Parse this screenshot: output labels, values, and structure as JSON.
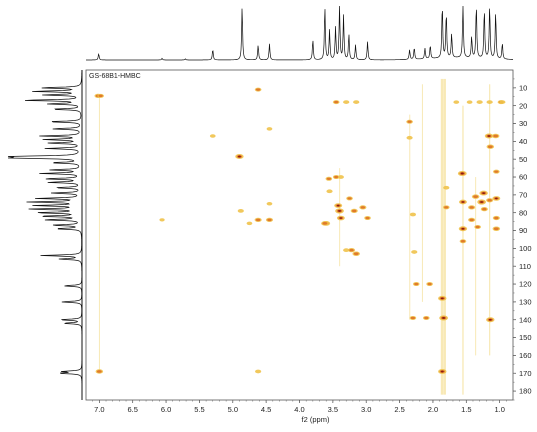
{
  "chart_data": {
    "type": "heatmap",
    "title": "GS-68B1-HMBC",
    "xlabel": "f2 (ppm)",
    "ylabel": "",
    "xlim": [
      7.2,
      0.8
    ],
    "ylim": [
      0,
      185
    ],
    "x_ticks": [
      "7.0",
      "6.5",
      "6.0",
      "5.5",
      "5.0",
      "4.5",
      "4.0",
      "3.5",
      "3.0",
      "2.5",
      "2.0",
      "1.5",
      "1.0"
    ],
    "y_ticks": [
      "10",
      "20",
      "30",
      "40",
      "50",
      "60",
      "70",
      "80",
      "90",
      "100",
      "110",
      "120",
      "130",
      "140",
      "150",
      "160",
      "170",
      "180"
    ],
    "grid": false,
    "proton_projection": [
      {
        "ppm": 7.01,
        "h": 0.12
      },
      {
        "ppm": 6.06,
        "h": 0.03
      },
      {
        "ppm": 5.71,
        "h": 0.02
      },
      {
        "ppm": 5.3,
        "h": 0.2
      },
      {
        "ppm": 4.86,
        "h": 1.0
      },
      {
        "ppm": 4.62,
        "h": 0.28
      },
      {
        "ppm": 4.45,
        "h": 0.3
      },
      {
        "ppm": 3.8,
        "h": 0.38
      },
      {
        "ppm": 3.62,
        "h": 1.0
      },
      {
        "ppm": 3.55,
        "h": 0.55
      },
      {
        "ppm": 3.46,
        "h": 0.6
      },
      {
        "ppm": 3.4,
        "h": 1.0
      },
      {
        "ppm": 3.34,
        "h": 0.82
      },
      {
        "ppm": 3.26,
        "h": 0.48
      },
      {
        "ppm": 3.16,
        "h": 0.28
      },
      {
        "ppm": 2.98,
        "h": 0.34
      },
      {
        "ppm": 2.35,
        "h": 0.18
      },
      {
        "ppm": 2.28,
        "h": 0.22
      },
      {
        "ppm": 2.12,
        "h": 0.2
      },
      {
        "ppm": 2.04,
        "h": 0.25
      },
      {
        "ppm": 1.86,
        "h": 1.0
      },
      {
        "ppm": 1.8,
        "h": 0.85
      },
      {
        "ppm": 1.72,
        "h": 0.45
      },
      {
        "ppm": 1.55,
        "h": 1.0
      },
      {
        "ppm": 1.42,
        "h": 0.4
      },
      {
        "ppm": 1.35,
        "h": 1.0
      },
      {
        "ppm": 1.23,
        "h": 0.92
      },
      {
        "ppm": 1.15,
        "h": 0.98
      },
      {
        "ppm": 1.06,
        "h": 0.88
      },
      {
        "ppm": 0.96,
        "h": 0.3
      }
    ],
    "carbon_projection": [
      {
        "ppm": 10,
        "h": 0.55
      },
      {
        "ppm": 12,
        "h": 0.65
      },
      {
        "ppm": 14,
        "h": 0.5
      },
      {
        "ppm": 17,
        "h": 0.8
      },
      {
        "ppm": 19,
        "h": 0.45
      },
      {
        "ppm": 22,
        "h": 0.4
      },
      {
        "ppm": 29,
        "h": 0.45
      },
      {
        "ppm": 33,
        "h": 0.4
      },
      {
        "ppm": 37,
        "h": 0.55
      },
      {
        "ppm": 39,
        "h": 0.5
      },
      {
        "ppm": 41,
        "h": 0.45
      },
      {
        "ppm": 44,
        "h": 0.48
      },
      {
        "ppm": 48.5,
        "h": 1.0
      },
      {
        "ppm": 49.3,
        "h": 0.95
      },
      {
        "ppm": 52,
        "h": 0.4
      },
      {
        "ppm": 56,
        "h": 0.42
      },
      {
        "ppm": 58,
        "h": 0.55
      },
      {
        "ppm": 61,
        "h": 0.5
      },
      {
        "ppm": 63,
        "h": 0.45
      },
      {
        "ppm": 66,
        "h": 0.35
      },
      {
        "ppm": 69,
        "h": 0.4
      },
      {
        "ppm": 72,
        "h": 0.6
      },
      {
        "ppm": 74,
        "h": 0.7
      },
      {
        "ppm": 76,
        "h": 0.62
      },
      {
        "ppm": 78,
        "h": 0.7
      },
      {
        "ppm": 80,
        "h": 0.6
      },
      {
        "ppm": 82,
        "h": 0.55
      },
      {
        "ppm": 84,
        "h": 0.5
      },
      {
        "ppm": 87,
        "h": 0.4
      },
      {
        "ppm": 89,
        "h": 0.35
      },
      {
        "ppm": 104,
        "h": 0.55
      },
      {
        "ppm": 106,
        "h": 0.3
      },
      {
        "ppm": 121,
        "h": 0.25
      },
      {
        "ppm": 130,
        "h": 0.28
      },
      {
        "ppm": 140,
        "h": 0.3
      },
      {
        "ppm": 142,
        "h": 0.25
      },
      {
        "ppm": 169,
        "h": 0.25
      },
      {
        "ppm": 170,
        "h": 0.3
      }
    ],
    "peaks": [
      {
        "x": 7.02,
        "y": 14.5,
        "i": 0.6
      },
      {
        "x": 6.98,
        "y": 14.5,
        "i": 0.5
      },
      {
        "x": 7.0,
        "y": 169,
        "i": 0.7
      },
      {
        "x": 4.62,
        "y": 11,
        "i": 0.5
      },
      {
        "x": 4.62,
        "y": 169,
        "i": 0.4
      },
      {
        "x": 4.9,
        "y": 48.5,
        "i": 0.9
      },
      {
        "x": 4.88,
        "y": 79,
        "i": 0.4
      },
      {
        "x": 4.62,
        "y": 84,
        "i": 0.6
      },
      {
        "x": 4.45,
        "y": 84,
        "i": 0.6
      },
      {
        "x": 4.75,
        "y": 86,
        "i": 0.3
      },
      {
        "x": 4.45,
        "y": 75,
        "i": 0.3
      },
      {
        "x": 4.45,
        "y": 33,
        "i": 0.3
      },
      {
        "x": 3.6,
        "y": 86,
        "i": 0.8
      },
      {
        "x": 3.56,
        "y": 61,
        "i": 0.5
      },
      {
        "x": 3.45,
        "y": 60,
        "i": 0.5
      },
      {
        "x": 3.38,
        "y": 60,
        "i": 0.4
      },
      {
        "x": 3.4,
        "y": 79,
        "i": 1.0
      },
      {
        "x": 3.42,
        "y": 76,
        "i": 0.8
      },
      {
        "x": 3.38,
        "y": 83,
        "i": 0.8
      },
      {
        "x": 3.25,
        "y": 72,
        "i": 0.5
      },
      {
        "x": 3.18,
        "y": 79,
        "i": 0.6
      },
      {
        "x": 3.05,
        "y": 77,
        "i": 0.6
      },
      {
        "x": 2.98,
        "y": 83,
        "i": 0.5
      },
      {
        "x": 3.22,
        "y": 101,
        "i": 0.6
      },
      {
        "x": 3.15,
        "y": 103,
        "i": 0.7
      },
      {
        "x": 3.3,
        "y": 101,
        "i": 0.4
      },
      {
        "x": 3.45,
        "y": 18,
        "i": 0.5
      },
      {
        "x": 3.3,
        "y": 18,
        "i": 0.4
      },
      {
        "x": 3.15,
        "y": 18,
        "i": 0.4
      },
      {
        "x": 3.55,
        "y": 68,
        "i": 0.4
      },
      {
        "x": 3.62,
        "y": 86,
        "i": 0.7
      },
      {
        "x": 2.35,
        "y": 29,
        "i": 0.5
      },
      {
        "x": 2.35,
        "y": 38,
        "i": 0.4
      },
      {
        "x": 2.3,
        "y": 81,
        "i": 0.4
      },
      {
        "x": 2.25,
        "y": 120,
        "i": 0.5
      },
      {
        "x": 2.05,
        "y": 120,
        "i": 0.5
      },
      {
        "x": 2.3,
        "y": 139,
        "i": 0.5
      },
      {
        "x": 2.1,
        "y": 139,
        "i": 0.5
      },
      {
        "x": 2.28,
        "y": 102,
        "i": 0.4
      },
      {
        "x": 1.86,
        "y": 128,
        "i": 0.9
      },
      {
        "x": 1.84,
        "y": 139,
        "i": 1.0
      },
      {
        "x": 1.86,
        "y": 169,
        "i": 0.9
      },
      {
        "x": 1.8,
        "y": 66,
        "i": 0.4
      },
      {
        "x": 1.8,
        "y": 77,
        "i": 0.5
      },
      {
        "x": 1.56,
        "y": 58,
        "i": 1.0
      },
      {
        "x": 1.55,
        "y": 74,
        "i": 0.8
      },
      {
        "x": 1.55,
        "y": 89,
        "i": 0.9
      },
      {
        "x": 1.55,
        "y": 96,
        "i": 0.5
      },
      {
        "x": 1.42,
        "y": 77,
        "i": 0.6
      },
      {
        "x": 1.42,
        "y": 84,
        "i": 0.6
      },
      {
        "x": 1.36,
        "y": 71,
        "i": 0.7
      },
      {
        "x": 1.33,
        "y": 88,
        "i": 0.5
      },
      {
        "x": 1.27,
        "y": 74,
        "i": 1.0
      },
      {
        "x": 1.24,
        "y": 69,
        "i": 0.9
      },
      {
        "x": 1.23,
        "y": 78,
        "i": 0.6
      },
      {
        "x": 1.16,
        "y": 37,
        "i": 0.9
      },
      {
        "x": 1.14,
        "y": 43,
        "i": 0.7
      },
      {
        "x": 1.15,
        "y": 73,
        "i": 0.6
      },
      {
        "x": 1.14,
        "y": 140,
        "i": 0.9
      },
      {
        "x": 1.06,
        "y": 37,
        "i": 0.7
      },
      {
        "x": 1.05,
        "y": 72,
        "i": 0.8
      },
      {
        "x": 1.05,
        "y": 83,
        "i": 0.6
      },
      {
        "x": 1.05,
        "y": 89,
        "i": 0.7
      },
      {
        "x": 0.98,
        "y": 18,
        "i": 0.5
      },
      {
        "x": 1.15,
        "y": 18,
        "i": 0.4
      },
      {
        "x": 1.3,
        "y": 18,
        "i": 0.4
      },
      {
        "x": 1.45,
        "y": 18,
        "i": 0.3
      },
      {
        "x": 1.65,
        "y": 18,
        "i": 0.3
      },
      {
        "x": 0.96,
        "y": 18,
        "i": 0.4
      },
      {
        "x": 1.05,
        "y": 57,
        "i": 0.5
      },
      {
        "x": 5.3,
        "y": 37,
        "i": 0.3
      },
      {
        "x": 6.06,
        "y": 84,
        "i": 0.2
      }
    ],
    "streaks": [
      {
        "x": 1.86,
        "y0": 5,
        "y1": 182,
        "w": 0.045
      },
      {
        "x": 1.82,
        "y0": 5,
        "y1": 182,
        "w": 0.03
      },
      {
        "x": 1.55,
        "y0": 20,
        "y1": 182,
        "w": 0.02
      },
      {
        "x": 1.36,
        "y0": 60,
        "y1": 160,
        "w": 0.015
      },
      {
        "x": 1.15,
        "y0": 8,
        "y1": 160,
        "w": 0.018
      },
      {
        "x": 7.0,
        "y0": 15,
        "y1": 170,
        "w": 0.012
      },
      {
        "x": 3.4,
        "y0": 55,
        "y1": 110,
        "w": 0.012
      },
      {
        "x": 2.35,
        "y0": 25,
        "y1": 140,
        "w": 0.01
      },
      {
        "x": 2.16,
        "y0": 8,
        "y1": 130,
        "w": 0.01
      }
    ]
  }
}
